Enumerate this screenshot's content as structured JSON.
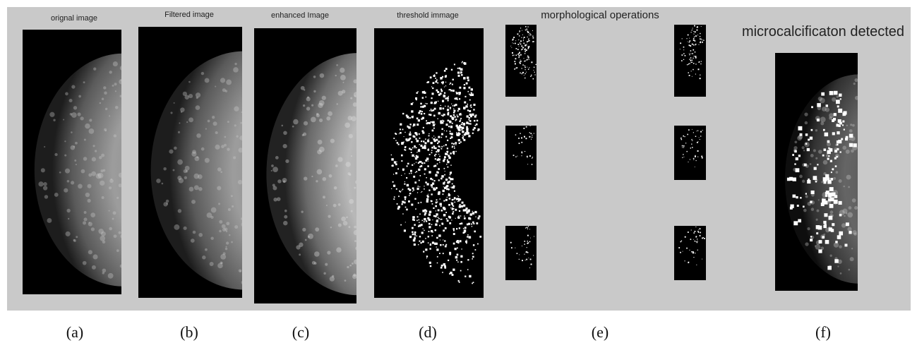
{
  "panels": [
    {
      "title": "orignal image",
      "caption": "(a)"
    },
    {
      "title": "Filtered image",
      "caption": "(b)"
    },
    {
      "title": "enhanced Image",
      "caption": "(c)"
    },
    {
      "title": "threshold immage",
      "caption": "(d)"
    },
    {
      "title": "morphological operations",
      "caption": "(e)"
    },
    {
      "title": "microcalcificaton detected",
      "caption": "(f)"
    }
  ]
}
